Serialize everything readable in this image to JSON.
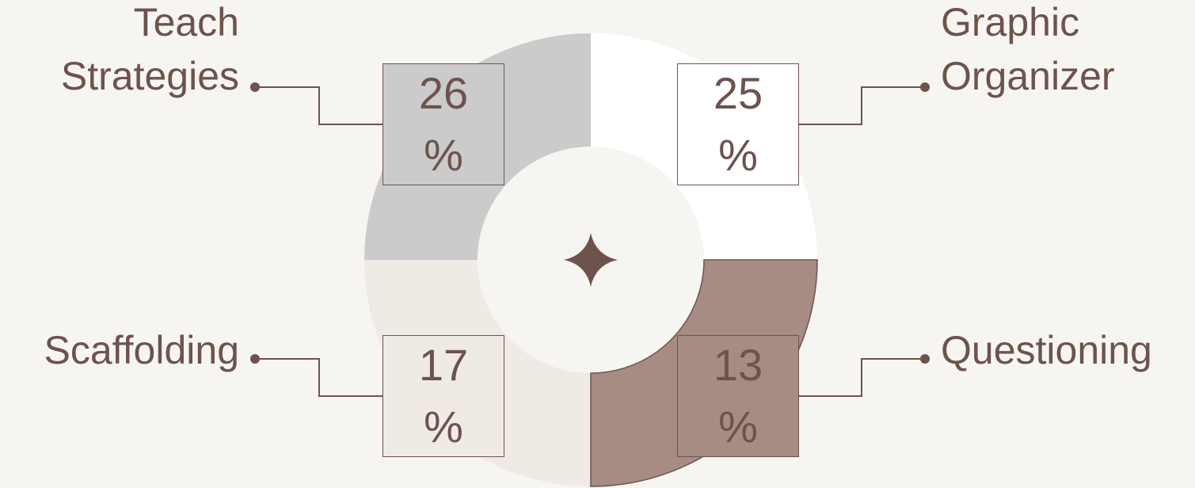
{
  "items": [
    {
      "label": "Teach Strategies",
      "value": "26 %"
    },
    {
      "label": "Graphic Organizer",
      "value": "25 %"
    },
    {
      "label": "Scaffolding",
      "value": "17 %"
    },
    {
      "label": "Questioning",
      "value": "13 %"
    }
  ]
}
